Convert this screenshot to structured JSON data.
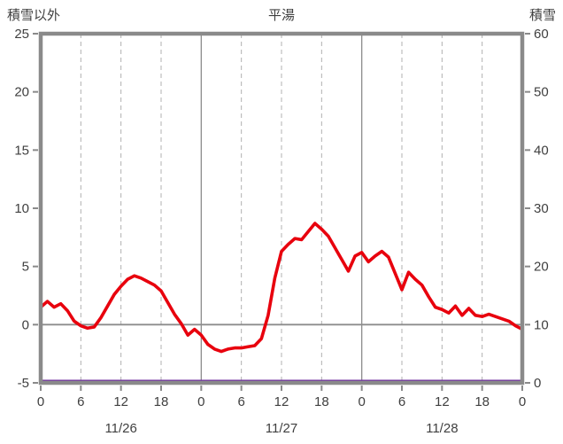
{
  "header": {
    "left_axis_title": "積雪以外",
    "chart_title": "平湯",
    "right_axis_title": "積雪"
  },
  "chart_data": {
    "type": "line",
    "title": "平湯",
    "x_hours_span": 72,
    "left_axis": {
      "label": "積雪以外",
      "min": -5,
      "max": 25,
      "ticks": [
        25,
        20,
        15,
        10,
        5,
        0,
        -5
      ]
    },
    "right_axis": {
      "label": "積雪",
      "min": 0,
      "max": 60,
      "ticks": [
        60,
        50,
        40,
        30,
        20,
        10,
        0
      ]
    },
    "x_ticks": {
      "hours": [
        0,
        6,
        12,
        18,
        24,
        30,
        36,
        42,
        48,
        54,
        60,
        66,
        72
      ],
      "labels": [
        "0",
        "6",
        "12",
        "18",
        "0",
        "6",
        "12",
        "18",
        "0",
        "6",
        "12",
        "18",
        "0"
      ]
    },
    "day_labels": [
      {
        "label": "11/26",
        "center_hour": 12
      },
      {
        "label": "11/27",
        "center_hour": 36
      },
      {
        "label": "11/28",
        "center_hour": 60
      }
    ],
    "grid": {
      "vertical_dashed_every_hours": 6,
      "vertical_solid_every_hours": 24,
      "zero_line": true
    },
    "series": [
      {
        "name": "積雪以外",
        "axis": "left",
        "color": "#e8000d",
        "width": 3.6,
        "x_start": 0,
        "x_step": 1,
        "values": [
          1.5,
          2.0,
          1.5,
          1.8,
          1.2,
          0.3,
          -0.1,
          -0.3,
          -0.2,
          0.6,
          1.6,
          2.6,
          3.3,
          3.9,
          4.2,
          4.0,
          3.7,
          3.4,
          2.9,
          1.9,
          0.9,
          0.1,
          -0.9,
          -0.4,
          -0.9,
          -1.7,
          -2.1,
          -2.3,
          -2.1,
          -2.0,
          -2.0,
          -1.9,
          -1.8,
          -1.2,
          0.8,
          4.0,
          6.3,
          6.9,
          7.4,
          7.3,
          8.0,
          8.7,
          8.2,
          7.6,
          6.6,
          5.6,
          4.6,
          5.9,
          6.2,
          5.4,
          5.9,
          6.3,
          5.8,
          4.4,
          3.0,
          4.5,
          3.9,
          3.4,
          2.4,
          1.5,
          1.3,
          1.0,
          1.6,
          0.8,
          1.4,
          0.8,
          0.7,
          0.9,
          0.7,
          0.5,
          0.3,
          -0.1,
          -0.4
        ]
      },
      {
        "name": "積雪",
        "axis": "right",
        "color": "#7030a0",
        "width": 3,
        "x": [
          0,
          72
        ],
        "values": [
          0,
          0
        ]
      }
    ],
    "colors": {
      "border": "#8a8a8a",
      "grid_dashed": "#b0b0b0",
      "grid_solid": "#8c8c8c",
      "text": "#3f3f3f"
    }
  }
}
